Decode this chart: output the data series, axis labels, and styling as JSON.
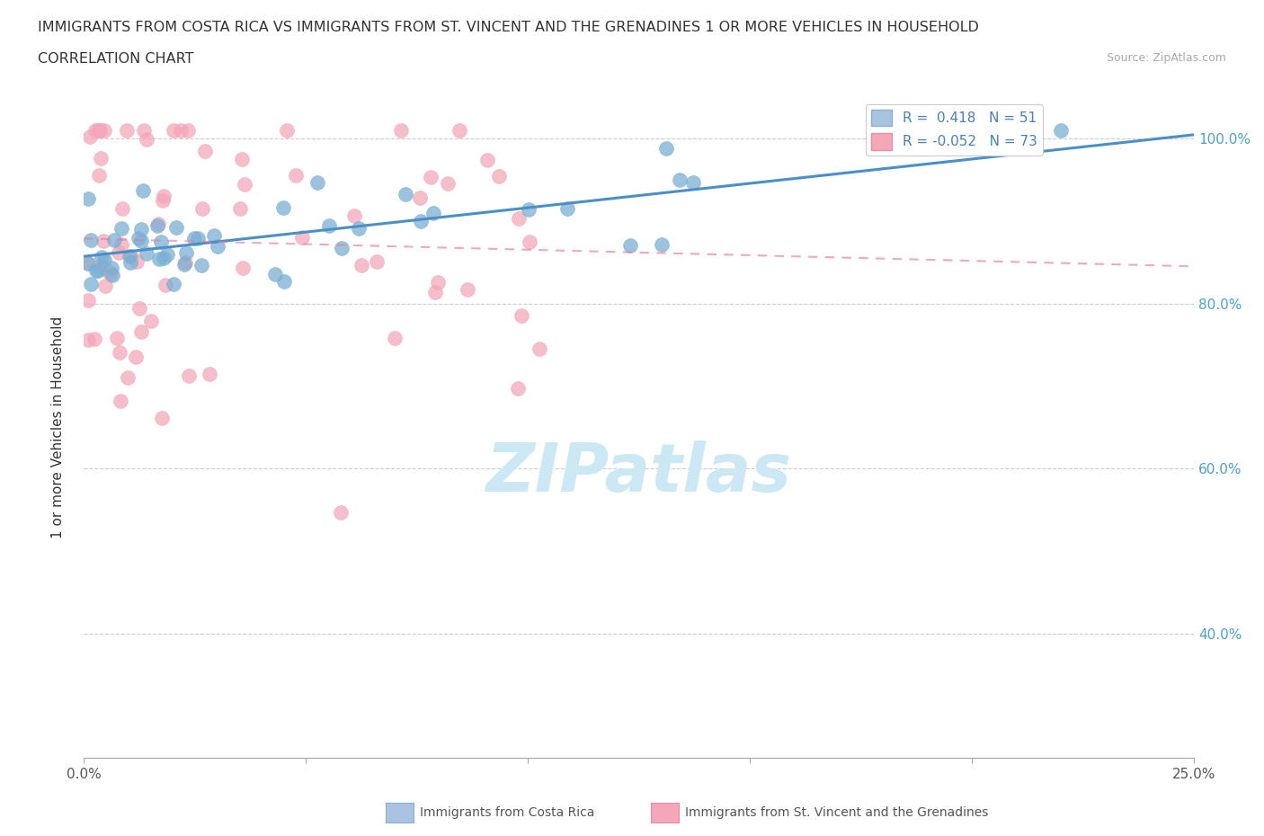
{
  "title_line1": "IMMIGRANTS FROM COSTA RICA VS IMMIGRANTS FROM ST. VINCENT AND THE GRENADINES 1 OR MORE VEHICLES IN HOUSEHOLD",
  "title_line2": "CORRELATION CHART",
  "source_text": "Source: ZipAtlas.com",
  "ylabel": "1 or more Vehicles in Household",
  "xmin": 0.0,
  "xmax": 0.25,
  "ymin": 0.25,
  "ymax": 1.05,
  "legend_entries": [
    {
      "label": "Immigrants from Costa Rica",
      "color": "#a8c4e0",
      "R": 0.418,
      "N": 51
    },
    {
      "label": "Immigrants from St. Vincent and the Grenadines",
      "color": "#f4a7b9",
      "R": -0.052,
      "N": 73
    }
  ],
  "watermark": "ZIPatlas",
  "watermark_color": "#cde8f5",
  "costa_rica_color": "#7aafd4",
  "svg_color": "#f4a7b9",
  "trend_blue": "#4a90c8",
  "trend_pink": "#e878a0"
}
